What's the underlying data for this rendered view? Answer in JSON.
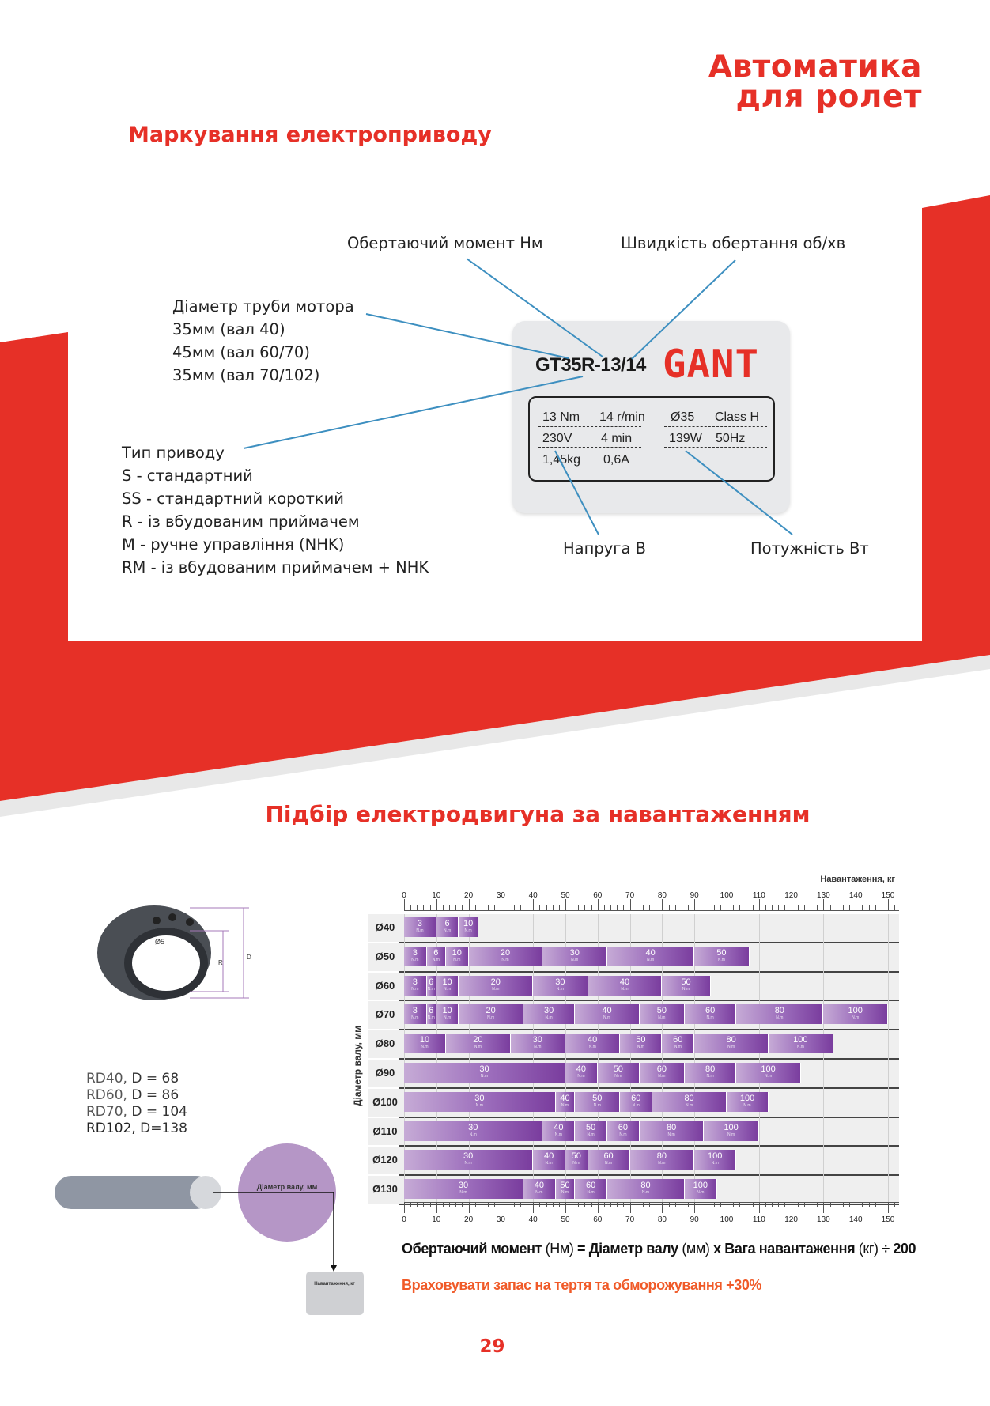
{
  "header": {
    "brand_line1": "Автоматика",
    "brand_line2": "для ролет"
  },
  "marking": {
    "title": "Маркування електроприводу",
    "torque_label": "Обертаючий момент Нм",
    "speed_label": "Швидкість обертання об/хв",
    "diameter": [
      "Діаметр труби мотора",
      "35мм (вал 40)",
      "45мм (вал 60/70)",
      "35мм (вал 70/102)"
    ],
    "type": [
      "Тип приводу",
      "S - стандартний",
      "SS - стандартний короткий",
      "R - із вбудованим приймачем",
      "M - ручне управління (NHK)",
      "RM - із вбудованим приймачем + NHK"
    ],
    "voltage_label": "Напруга В",
    "power_label": "Потужність Вт",
    "plate": {
      "model": "GT35R-13/14",
      "logo": "GANT",
      "specs": [
        "13 Nm",
        "14 r/min",
        "Ø35",
        "Class H",
        "230V",
        "4 min",
        "139W",
        "50Hz",
        "1,45kg",
        "0,6A"
      ]
    }
  },
  "selection": {
    "title": "Підбір електродвигуна за навантаженням",
    "rd_list": [
      {
        "name": "RD40,",
        "value": "D = 68"
      },
      {
        "name": "RD60,",
        "value": "D = 86"
      },
      {
        "name": "RD70,",
        "value": "D = 104"
      },
      {
        "name": "RD102,",
        "value": "D=138"
      }
    ],
    "ring_labels": {
      "hole": "Ø5",
      "r": "R",
      "d": "D"
    },
    "shaft_diagram_label": "Діаметр валу, мм",
    "load_box_label": "Навантаження, кг",
    "formula": {
      "p1": "Обертаючий момент",
      "p2": " (Нм) ",
      "p3": "= Діаметр валу",
      "p4": " (мм) ",
      "p5": "х Вага навантаження",
      "p6": " (кг) ",
      "p7": "÷ 200"
    },
    "note": "Враховувати запас на тертя та обморожування +30%"
  },
  "chart_data": {
    "type": "bar",
    "orientation": "horizontal-stacked",
    "xlabel": "Навантаження, кг",
    "ylabel": "Діаметр валу, мм",
    "xlim": [
      0,
      150
    ],
    "xticks": [
      0,
      10,
      20,
      30,
      40,
      50,
      60,
      70,
      80,
      90,
      100,
      110,
      120,
      130,
      140,
      150
    ],
    "grid": true,
    "segment_unit": "N.m",
    "colors": {
      "light": "#c6abd6",
      "dark": "#7a3d9e"
    },
    "categories": [
      "Ø40",
      "Ø50",
      "Ø60",
      "Ø70",
      "Ø80",
      "Ø90",
      "Ø100",
      "Ø110",
      "Ø120",
      "Ø130"
    ],
    "rows": [
      {
        "shaft": "Ø40",
        "segments": [
          {
            "torque": 3,
            "max_kg": 10
          },
          {
            "torque": 6,
            "max_kg": 17
          },
          {
            "torque": 10,
            "max_kg": 23
          }
        ]
      },
      {
        "shaft": "Ø50",
        "segments": [
          {
            "torque": 3,
            "max_kg": 7
          },
          {
            "torque": 6,
            "max_kg": 13
          },
          {
            "torque": 10,
            "max_kg": 20
          },
          {
            "torque": 20,
            "max_kg": 43
          },
          {
            "torque": 30,
            "max_kg": 63
          },
          {
            "torque": 40,
            "max_kg": 90
          },
          {
            "torque": 50,
            "max_kg": 107
          }
        ]
      },
      {
        "shaft": "Ø60",
        "segments": [
          {
            "torque": 3,
            "max_kg": 7
          },
          {
            "torque": 6,
            "max_kg": 10
          },
          {
            "torque": 10,
            "max_kg": 17
          },
          {
            "torque": 20,
            "max_kg": 40
          },
          {
            "torque": 30,
            "max_kg": 57
          },
          {
            "torque": 40,
            "max_kg": 80
          },
          {
            "torque": 50,
            "max_kg": 95
          }
        ]
      },
      {
        "shaft": "Ø70",
        "segments": [
          {
            "torque": 3,
            "max_kg": 7
          },
          {
            "torque": 6,
            "max_kg": 10
          },
          {
            "torque": 10,
            "max_kg": 17
          },
          {
            "torque": 20,
            "max_kg": 37
          },
          {
            "torque": 30,
            "max_kg": 53
          },
          {
            "torque": 40,
            "max_kg": 73
          },
          {
            "torque": 50,
            "max_kg": 87
          },
          {
            "torque": 60,
            "max_kg": 103
          },
          {
            "torque": 80,
            "max_kg": 130
          },
          {
            "torque": 100,
            "max_kg": 150
          }
        ]
      },
      {
        "shaft": "Ø80",
        "segments": [
          {
            "torque": 10,
            "max_kg": 13
          },
          {
            "torque": 20,
            "max_kg": 33
          },
          {
            "torque": 30,
            "max_kg": 50
          },
          {
            "torque": 40,
            "max_kg": 67
          },
          {
            "torque": 50,
            "max_kg": 80
          },
          {
            "torque": 60,
            "max_kg": 90
          },
          {
            "torque": 80,
            "max_kg": 113
          },
          {
            "torque": 100,
            "max_kg": 133
          }
        ]
      },
      {
        "shaft": "Ø90",
        "segments": [
          {
            "torque": 30,
            "max_kg": 50
          },
          {
            "torque": 40,
            "max_kg": 60
          },
          {
            "torque": 50,
            "max_kg": 73
          },
          {
            "torque": 60,
            "max_kg": 87
          },
          {
            "torque": 80,
            "max_kg": 103
          },
          {
            "torque": 100,
            "max_kg": 123
          }
        ]
      },
      {
        "shaft": "Ø100",
        "segments": [
          {
            "torque": 30,
            "max_kg": 47
          },
          {
            "torque": 40,
            "max_kg": 53
          },
          {
            "torque": 50,
            "max_kg": 67
          },
          {
            "torque": 60,
            "max_kg": 77
          },
          {
            "torque": 80,
            "max_kg": 100
          },
          {
            "torque": 100,
            "max_kg": 113
          }
        ]
      },
      {
        "shaft": "Ø110",
        "segments": [
          {
            "torque": 30,
            "max_kg": 43
          },
          {
            "torque": 40,
            "max_kg": 53
          },
          {
            "torque": 50,
            "max_kg": 63
          },
          {
            "torque": 60,
            "max_kg": 73
          },
          {
            "torque": 80,
            "max_kg": 93
          },
          {
            "torque": 100,
            "max_kg": 110
          }
        ]
      },
      {
        "shaft": "Ø120",
        "segments": [
          {
            "torque": 30,
            "max_kg": 40
          },
          {
            "torque": 40,
            "max_kg": 50
          },
          {
            "torque": 50,
            "max_kg": 57
          },
          {
            "torque": 60,
            "max_kg": 70
          },
          {
            "torque": 80,
            "max_kg": 90
          },
          {
            "torque": 100,
            "max_kg": 103
          }
        ]
      },
      {
        "shaft": "Ø130",
        "segments": [
          {
            "torque": 30,
            "max_kg": 37
          },
          {
            "torque": 40,
            "max_kg": 47
          },
          {
            "torque": 50,
            "max_kg": 53
          },
          {
            "torque": 60,
            "max_kg": 63
          },
          {
            "torque": 80,
            "max_kg": 87
          },
          {
            "torque": 100,
            "max_kg": 97
          }
        ]
      }
    ]
  },
  "footer": {
    "page_number": "29"
  }
}
